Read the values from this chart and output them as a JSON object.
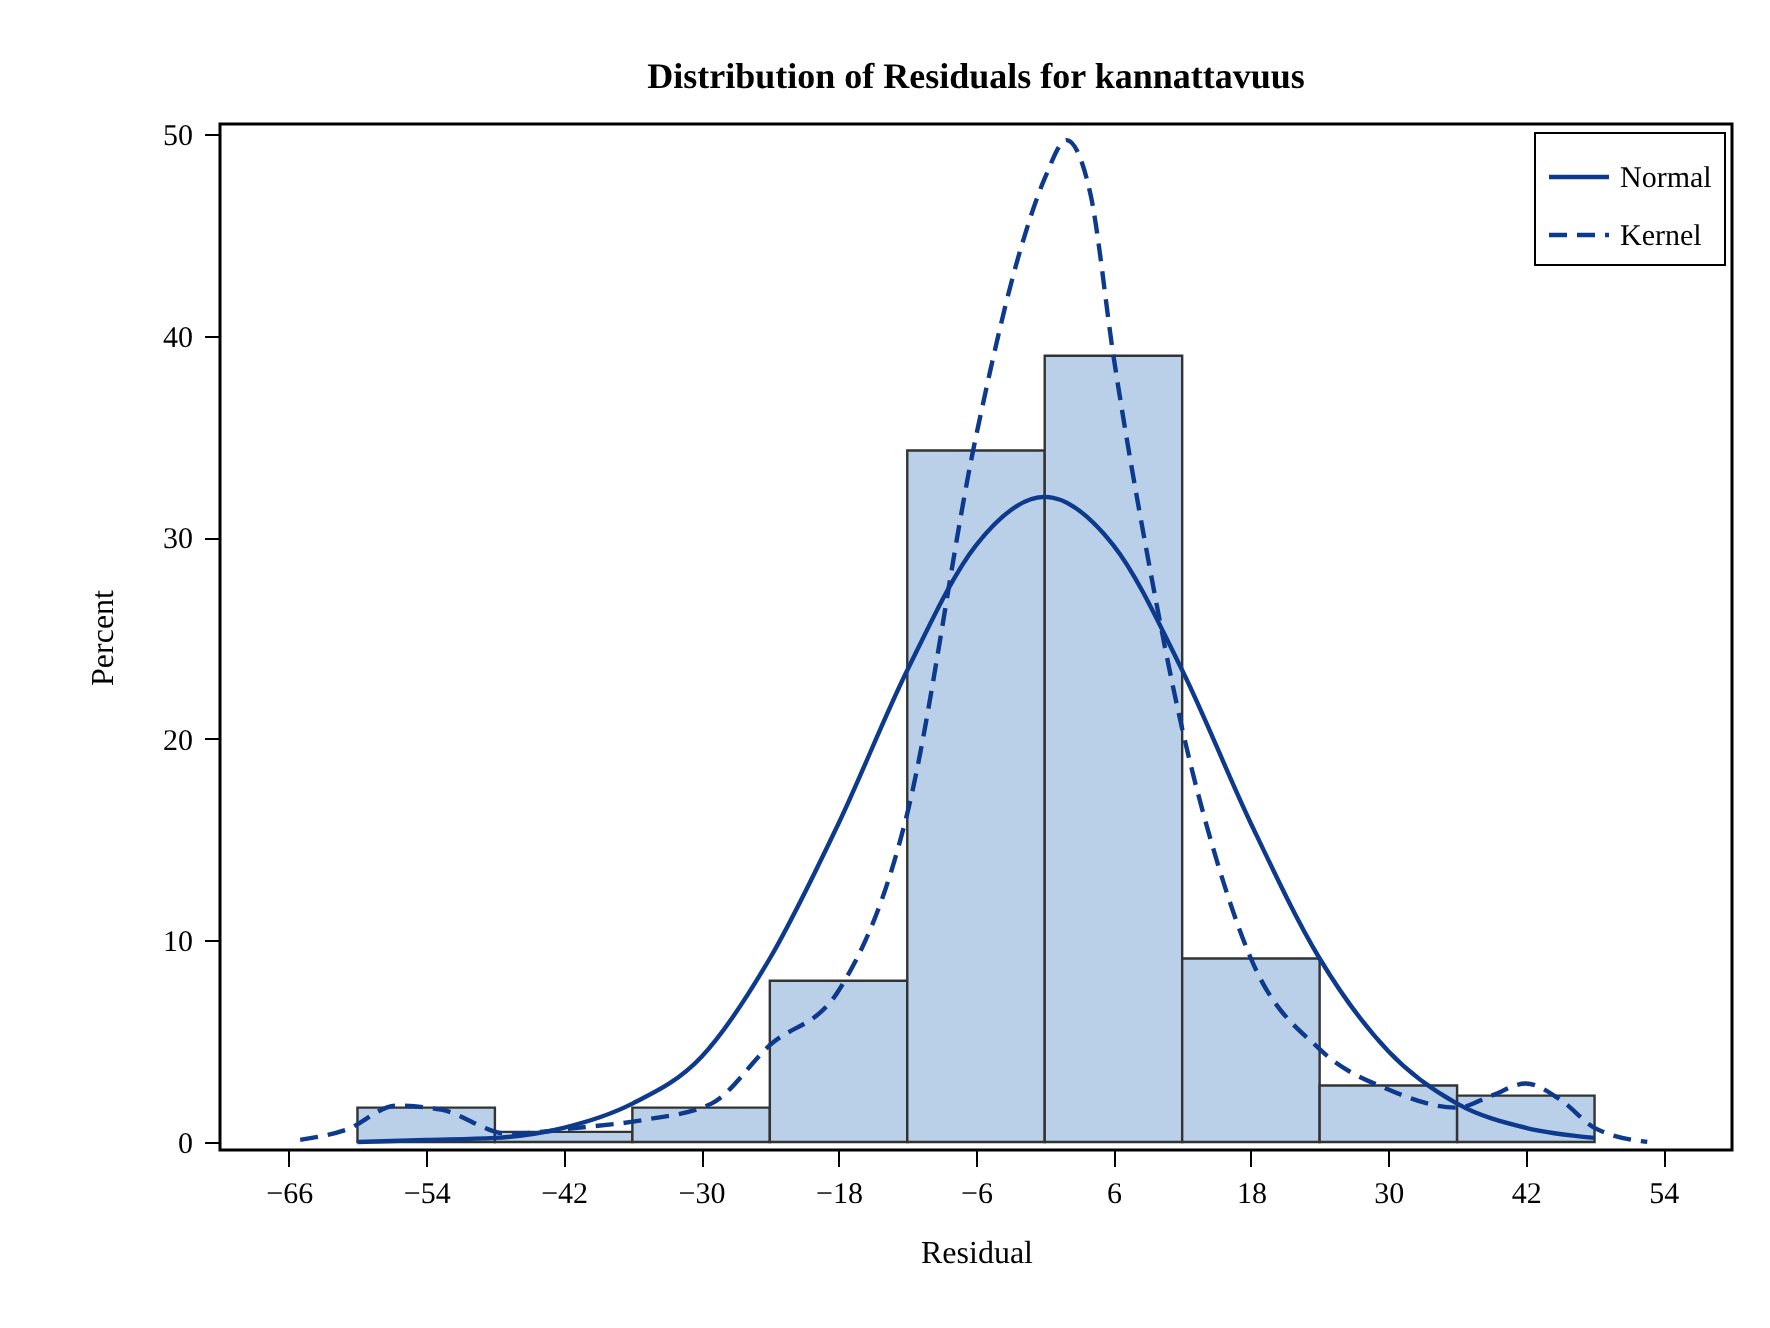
{
  "chart_data": {
    "type": "histogram",
    "title": "Distribution of Residuals for kannattavuus",
    "xlabel": "Residual",
    "ylabel": "Percent",
    "bins": [
      -60,
      -48,
      -36,
      -24,
      -12,
      0,
      12,
      24,
      36,
      48
    ],
    "values": [
      1.7,
      0.5,
      1.7,
      8.0,
      34.3,
      39.0,
      9.1,
      2.8,
      2.3
    ],
    "color": "#b9d0e8",
    "series": [
      {
        "name": "Normal",
        "type": "line",
        "color": "#0d3a8c",
        "line_style": "solid",
        "x": [
          -60,
          -54,
          -48,
          -42,
          -36,
          -30,
          -24,
          -18,
          -12,
          -6,
          0,
          6,
          12,
          18,
          24,
          30,
          36,
          42,
          48
        ],
        "values": [
          0.0,
          0.1,
          0.2,
          0.7,
          1.9,
          4.2,
          9.1,
          15.8,
          23.4,
          29.6,
          32.0,
          29.6,
          23.4,
          15.8,
          9.1,
          4.5,
          1.9,
          0.7,
          0.2
        ]
      },
      {
        "name": "Kernel",
        "type": "line",
        "color": "#0d3a8c",
        "line_style": "dashed",
        "x": [
          -65,
          -61,
          -56.6,
          -52.7,
          -46.8,
          -40.8,
          -34.9,
          -29.1,
          -24,
          -18,
          -12,
          -6,
          -2,
          0,
          1.9,
          4,
          6,
          9,
          12,
          15,
          18,
          24,
          30,
          36,
          39,
          42,
          45,
          48,
          52.6
        ],
        "values": [
          0.1,
          0.6,
          1.8,
          1.6,
          0.4,
          0.7,
          1.1,
          1.9,
          4.8,
          7.5,
          16.3,
          35.0,
          44.5,
          47.8,
          49.7,
          47.0,
          39.0,
          29.0,
          20.5,
          14.0,
          9.1,
          4.6,
          2.6,
          1.7,
          2.3,
          2.9,
          2.1,
          0.7,
          0.0
        ]
      }
    ],
    "xlim": [
      -72,
      60
    ],
    "xticks": [
      -66,
      -54,
      -42,
      -30,
      -18,
      -6,
      6,
      18,
      30,
      42,
      54
    ],
    "ylim": [
      -0.4,
      50.5
    ],
    "yticks": [
      0,
      10,
      20,
      30,
      40,
      50
    ],
    "grid": false,
    "legend": "top right"
  }
}
